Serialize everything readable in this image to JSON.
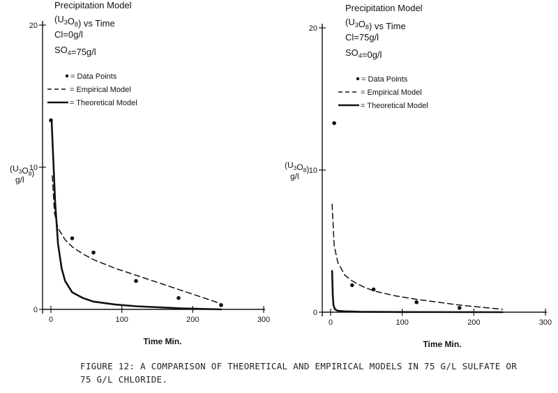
{
  "figure": {
    "caption_line1": "FIGURE 12:  A COMPARISON OF THEORETICAL AND EMPIRICAL MODELS IN 75 G/L SULFATE OR",
    "caption_line2": "75 G/L CHLORIDE."
  },
  "chart_data": [
    {
      "type": "line",
      "title": "Precipitation Model",
      "subtitle": "(U3O8) vs Time",
      "conditions": [
        "Cl=0g/l",
        "SO4=75g/l"
      ],
      "xlabel": "Time Min.",
      "ylabel_line1": "(U3O8)",
      "ylabel_line2": "g/l",
      "xlim": [
        0,
        300
      ],
      "ylim": [
        0,
        20
      ],
      "xticks": [
        0,
        100,
        200,
        300
      ],
      "yticks": [
        0,
        10,
        20
      ],
      "grid": false,
      "legend_position": "top",
      "legend": [
        {
          "label": "Data Points",
          "style": "points"
        },
        {
          "label": "Empirical Model",
          "style": "dashed"
        },
        {
          "label": "Theoretical Model",
          "style": "solid"
        }
      ],
      "series": [
        {
          "name": "Data Points",
          "kind": "scatter",
          "x": [
            0,
            30,
            60,
            120,
            180,
            240
          ],
          "y": [
            13.3,
            5.0,
            4.0,
            2.0,
            0.8,
            0.3
          ]
        },
        {
          "name": "Empirical Model",
          "kind": "dashed",
          "x": [
            2,
            5,
            10,
            20,
            30,
            45,
            60,
            90,
            120,
            150,
            180,
            210,
            240
          ],
          "y": [
            9.4,
            6.8,
            5.7,
            4.9,
            4.4,
            3.9,
            3.5,
            2.9,
            2.4,
            1.9,
            1.4,
            0.9,
            0.4
          ]
        },
        {
          "name": "Theoretical Model",
          "kind": "solid",
          "x": [
            1,
            3,
            6,
            10,
            15,
            20,
            30,
            45,
            60,
            90,
            120,
            180,
            240
          ],
          "y": [
            13.3,
            11.0,
            7.5,
            4.6,
            2.9,
            2.0,
            1.2,
            0.8,
            0.55,
            0.35,
            0.22,
            0.08,
            0.0
          ]
        }
      ]
    },
    {
      "type": "line",
      "title": "Precipitation Model",
      "subtitle": "(U3O8) vs Time",
      "conditions": [
        "Cl=75g/l",
        "SO4=0g/l"
      ],
      "xlabel": "Time Min.",
      "ylabel_line1": "(U3O8)",
      "ylabel_line2": "g/l",
      "xlim": [
        0,
        300
      ],
      "ylim": [
        0,
        20
      ],
      "xticks": [
        0,
        100,
        200,
        300
      ],
      "yticks": [
        0,
        10,
        20
      ],
      "grid": false,
      "legend_position": "top",
      "legend": [
        {
          "label": "Data Points",
          "style": "points"
        },
        {
          "label": "Empirical Model",
          "style": "dashed"
        },
        {
          "label": "Theoretical Model",
          "style": "solid"
        }
      ],
      "series": [
        {
          "name": "Data Points",
          "kind": "scatter",
          "x": [
            5,
            30,
            60,
            120,
            180
          ],
          "y": [
            13.3,
            1.9,
            1.6,
            0.7,
            0.3
          ]
        },
        {
          "name": "Empirical Model",
          "kind": "dashed",
          "x": [
            2,
            5,
            10,
            20,
            30,
            45,
            60,
            90,
            120,
            150,
            180,
            210,
            240
          ],
          "y": [
            7.6,
            4.7,
            3.5,
            2.6,
            2.2,
            1.8,
            1.5,
            1.15,
            0.9,
            0.7,
            0.5,
            0.35,
            0.2
          ]
        },
        {
          "name": "Theoretical Model",
          "kind": "solid",
          "x": [
            2,
            3,
            4,
            6,
            10,
            20,
            40,
            100,
            240
          ],
          "y": [
            2.9,
            1.2,
            0.5,
            0.2,
            0.1,
            0.06,
            0.03,
            0.01,
            0.0
          ]
        }
      ]
    }
  ]
}
